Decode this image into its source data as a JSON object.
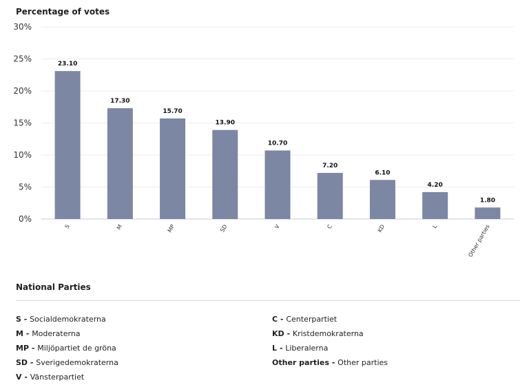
{
  "chart_data": {
    "type": "bar",
    "ylabel": "Percentage of votes",
    "xlabel": "",
    "categories": [
      "S",
      "M",
      "MP",
      "SD",
      "V",
      "C",
      "KD",
      "L",
      "Other parties"
    ],
    "values": [
      23.1,
      17.3,
      15.7,
      13.9,
      10.7,
      7.2,
      6.1,
      4.2,
      1.8
    ],
    "data_labels": [
      "23.10",
      "17.30",
      "15.70",
      "13.90",
      "10.70",
      "7.20",
      "6.10",
      "4.20",
      "1.80"
    ],
    "y_ticks": [
      "0%",
      "5%",
      "10%",
      "15%",
      "20%",
      "25%",
      "30%"
    ],
    "ylim": [
      0,
      30
    ],
    "grid": true,
    "bar_color": "#7b87a3"
  },
  "legend": {
    "title": "National Parties",
    "left": [
      {
        "code": "S",
        "sep": " - ",
        "name": "Socialdemokraterna"
      },
      {
        "code": "M",
        "sep": " - ",
        "name": "Moderaterna"
      },
      {
        "code": "MP",
        "sep": " - ",
        "name": "Miljöpartiet de gröna"
      },
      {
        "code": "SD",
        "sep": " - ",
        "name": "Sverigedemokraterna"
      },
      {
        "code": "V",
        "sep": " - ",
        "name": "Vänsterpartiet"
      }
    ],
    "right": [
      {
        "code": "C",
        "sep": " - ",
        "name": "Centerpartiet"
      },
      {
        "code": "KD",
        "sep": " - ",
        "name": "Kristdemokraterna"
      },
      {
        "code": "L",
        "sep": " - ",
        "name": "Liberalerna"
      },
      {
        "code": "Other parties",
        "sep": " - ",
        "name": "Other parties"
      }
    ]
  }
}
